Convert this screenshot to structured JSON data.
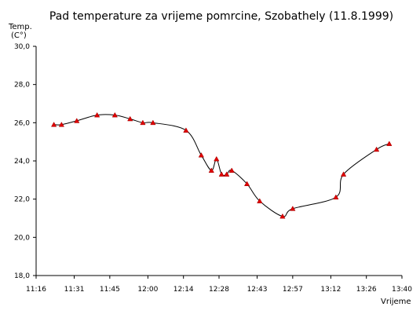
{
  "chart_data": {
    "type": "line",
    "title": "Pad temperature za vrijeme pomrcine, Szobathely (11.8.1999)",
    "ylabel_line1": "Temp.",
    "ylabel_line2": "(C°)",
    "xlabel": "Vrijeme",
    "ylim": [
      18.0,
      30.0
    ],
    "yticks": [
      "18,0",
      "20,0",
      "22,0",
      "24,0",
      "26,0",
      "28,0",
      "30,0"
    ],
    "xlim_minutes": [
      676,
      820
    ],
    "xticks": [
      {
        "label": "11:16",
        "t": 676
      },
      {
        "label": "11:31",
        "t": 691
      },
      {
        "label": "11:45",
        "t": 705
      },
      {
        "label": "12:00",
        "t": 720
      },
      {
        "label": "12:14",
        "t": 734
      },
      {
        "label": "12:28",
        "t": 748
      },
      {
        "label": "12:43",
        "t": 763
      },
      {
        "label": "12:57",
        "t": 777
      },
      {
        "label": "13:12",
        "t": 792
      },
      {
        "label": "13:26",
        "t": 806
      },
      {
        "label": "13:40",
        "t": 820
      }
    ],
    "x_time": [
      "11:23",
      "11:26",
      "11:32",
      "11:40",
      "11:47",
      "11:53",
      "11:58",
      "12:02",
      "12:15",
      "12:21",
      "12:25",
      "12:27",
      "12:29",
      "12:31",
      "12:33",
      "12:39",
      "12:44",
      "12:53",
      "12:57",
      "13:14",
      "13:17",
      "13:30",
      "13:35"
    ],
    "y": [
      25.9,
      25.9,
      26.1,
      26.4,
      26.4,
      26.2,
      26.0,
      26.0,
      25.6,
      24.3,
      23.5,
      24.1,
      23.3,
      23.3,
      23.5,
      22.8,
      21.9,
      21.1,
      21.5,
      22.1,
      23.3,
      24.6,
      24.9
    ],
    "grid": false,
    "legend": "none"
  }
}
